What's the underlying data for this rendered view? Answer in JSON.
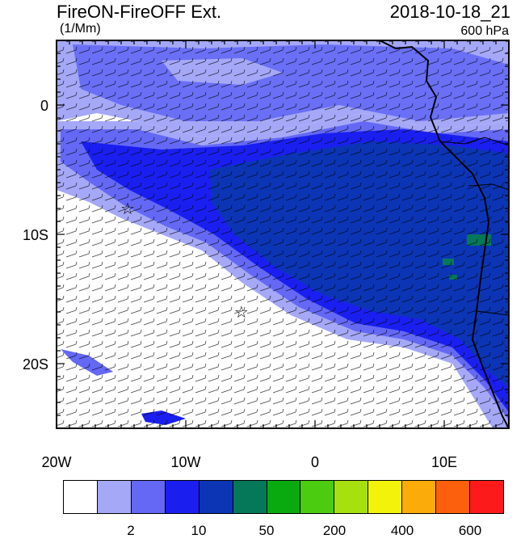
{
  "header": {
    "title": "FireON-FireOFF Ext.",
    "timestamp": "2018-10-18_21",
    "units": "(1/Mm)",
    "level": "600 hPa"
  },
  "map": {
    "lon_range": [
      -20,
      15
    ],
    "lat_range": [
      -25,
      5
    ],
    "x_ticks": [
      {
        "lon": -20,
        "label": "20W"
      },
      {
        "lon": -10,
        "label": "10W"
      },
      {
        "lon": 0,
        "label": "0"
      },
      {
        "lon": 10,
        "label": "10E"
      }
    ],
    "y_ticks": [
      {
        "lat": 0,
        "label": "0"
      },
      {
        "lat": -10,
        "label": "10S"
      },
      {
        "lat": -20,
        "label": "20S"
      }
    ],
    "markers": [
      {
        "name": "star-marker-1",
        "lon": -14.5,
        "lat": -8,
        "symbol": "☆"
      },
      {
        "name": "star-marker-2",
        "lon": -5.7,
        "lat": -16,
        "symbol": "☆"
      }
    ]
  },
  "colorbar": {
    "colors": [
      "#ffffff",
      "#a5a8f7",
      "#6468f5",
      "#1a1ff0",
      "#0c35b5",
      "#06785a",
      "#08aa10",
      "#4ccc10",
      "#a6e00e",
      "#f2f20a",
      "#fcac0a",
      "#fc600c",
      "#fc1a1a"
    ],
    "labels": [
      {
        "text": "2",
        "index": 1
      },
      {
        "text": "10",
        "index": 3
      },
      {
        "text": "50",
        "index": 5
      },
      {
        "text": "200",
        "index": 7
      },
      {
        "text": "400",
        "index": 9
      },
      {
        "text": "600",
        "index": 11
      }
    ]
  }
}
